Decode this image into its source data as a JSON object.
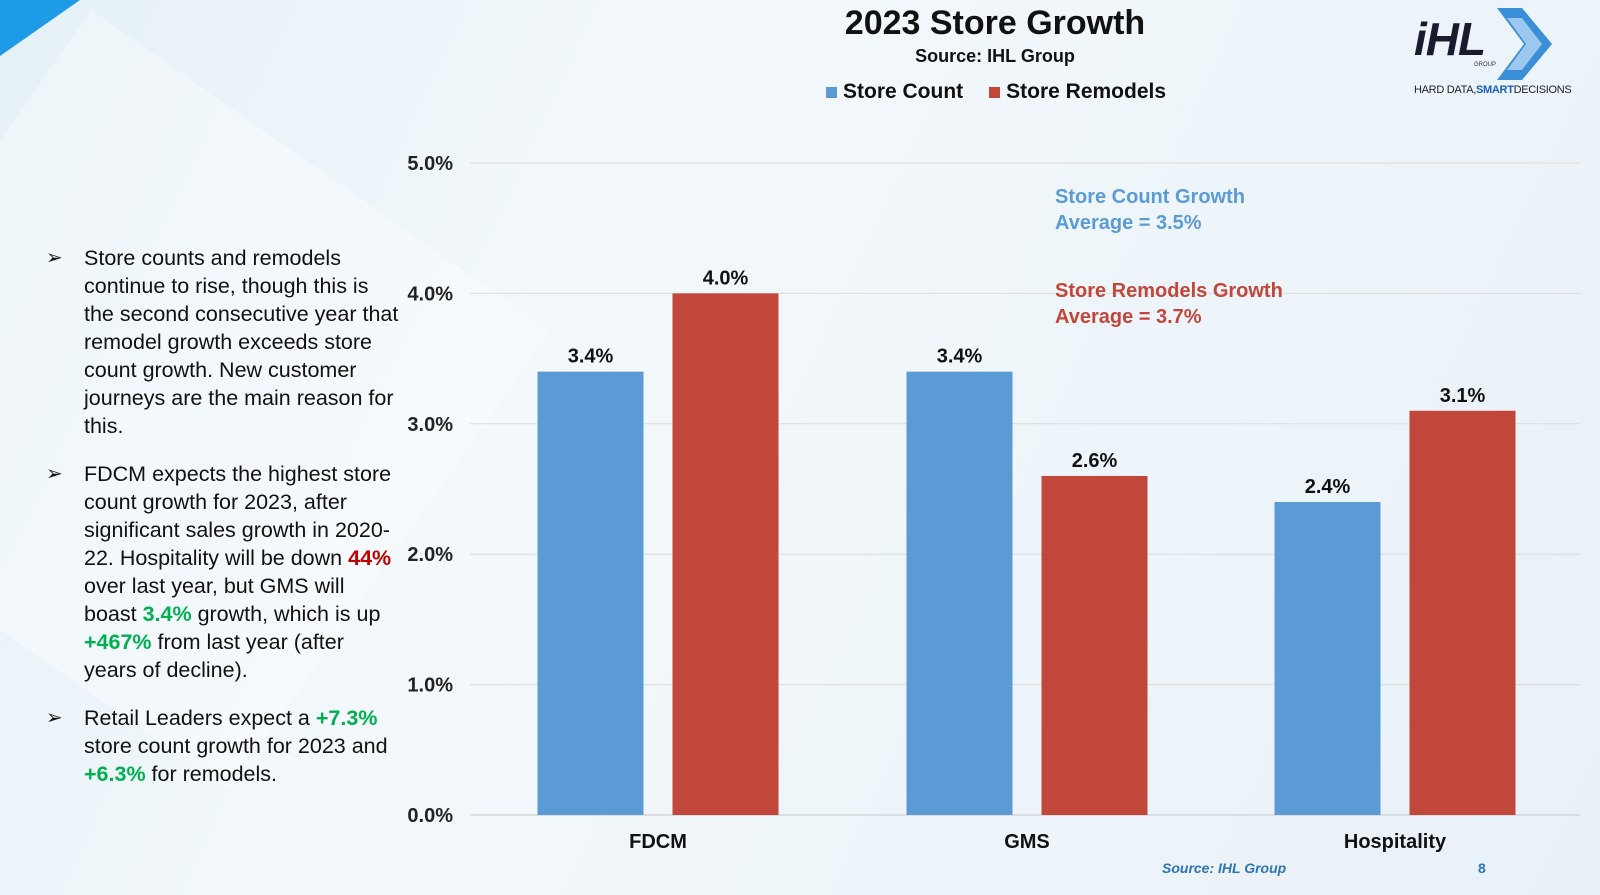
{
  "slide": {
    "page_number": "8",
    "footer_source": "Source: IHL Group"
  },
  "logo": {
    "main": "iHL",
    "group": "GROUP",
    "tagline_part1": "HARD DATA,",
    "tagline_part2": "SMART",
    "tagline_part3": "DECISIONS"
  },
  "bullets": [
    {
      "segments": [
        {
          "text": "Store counts and remodels continue to rise, though this is the second consecutive year that remodel growth exceeds store count growth. New customer journeys are the main reason for this.",
          "style": "normal"
        }
      ]
    },
    {
      "segments": [
        {
          "text": "FDCM expects the highest store count growth for 2023, after significant sales growth in 2020-22. Hospitality will be down ",
          "style": "normal"
        },
        {
          "text": "44%",
          "style": "red"
        },
        {
          "text": " over last year, but GMS will boast ",
          "style": "normal"
        },
        {
          "text": "3.4%",
          "style": "green"
        },
        {
          "text": " growth, which is up ",
          "style": "normal"
        },
        {
          "text": "+467%",
          "style": "green"
        },
        {
          "text": " from last year (after years of decline).",
          "style": "normal"
        }
      ]
    },
    {
      "segments": [
        {
          "text": "Retail Leaders expect a ",
          "style": "normal"
        },
        {
          "text": "+7.3%",
          "style": "green"
        },
        {
          "text": " store count growth for 2023 and ",
          "style": "normal"
        },
        {
          "text": "+6.3%",
          "style": "green"
        },
        {
          "text": " for remodels.",
          "style": "normal"
        }
      ]
    }
  ],
  "chart_data": {
    "type": "bar",
    "title": "2023 Store Growth",
    "subtitle": "Source: IHL Group",
    "categories": [
      "FDCM",
      "GMS",
      "Hospitality"
    ],
    "series": [
      {
        "name": "Store Count",
        "color": "#5b9bd5",
        "values": [
          3.4,
          3.4,
          2.4
        ],
        "labels": [
          "3.4%",
          "3.4%",
          "2.4%"
        ]
      },
      {
        "name": "Store Remodels",
        "color": "#c0473a",
        "values": [
          4.0,
          2.6,
          3.1
        ],
        "labels": [
          "4.0%",
          "2.6%",
          "3.1%"
        ]
      }
    ],
    "ylim": [
      0,
      5
    ],
    "yticks": [
      0,
      1,
      2,
      3,
      4,
      5
    ],
    "ytick_labels": [
      "0.0%",
      "1.0%",
      "2.0%",
      "3.0%",
      "4.0%",
      "5.0%"
    ],
    "grid": true,
    "legend_position": "top",
    "annotations": [
      {
        "line1": "Store Count Growth",
        "line2": "Average = 3.5%",
        "color": "#5b9bd5"
      },
      {
        "line1": "Store Remodels Growth",
        "line2": "Average = 3.7%",
        "color": "#c0473a"
      }
    ]
  }
}
